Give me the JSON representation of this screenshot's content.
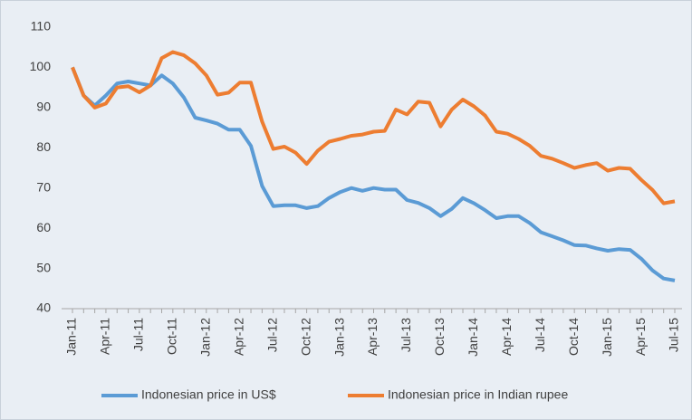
{
  "chart_data": {
    "type": "line",
    "categories": [
      "Jan-11",
      null,
      null,
      "Apr-11",
      null,
      null,
      "Jul-11",
      null,
      null,
      "Oct-11",
      null,
      null,
      "Jan-12",
      null,
      null,
      "Apr-12",
      null,
      null,
      "Jul-12",
      null,
      null,
      "Oct-12",
      null,
      null,
      "Jan-13",
      null,
      null,
      "Apr-13",
      null,
      null,
      "Jul-13",
      null,
      null,
      "Oct-13",
      null,
      null,
      "Jan-14",
      null,
      null,
      "Apr-14",
      null,
      null,
      "Jul-14",
      null,
      null,
      "Oct-14",
      null,
      null,
      "Jan-15",
      null,
      null,
      "Apr-15",
      null,
      null,
      "Jul-15"
    ],
    "series": [
      {
        "name": "Indonesian price in US$",
        "color": "#5b9bd5",
        "values": [
          100,
          93,
          90.5,
          93,
          96,
          96.5,
          96,
          95.5,
          98,
          96,
          92.5,
          87.5,
          86.8,
          86,
          84.5,
          84.5,
          80.5,
          70.5,
          65.5,
          65.7,
          65.7,
          65,
          65.5,
          67.5,
          69,
          70,
          69.3,
          70,
          69.6,
          69.6,
          67,
          66.3,
          65,
          63,
          64.8,
          67.5,
          66.2,
          64.5,
          62.5,
          63,
          63,
          61.3,
          59,
          58,
          57,
          55.8,
          55.7,
          55,
          54.4,
          54.8,
          54.6,
          52.4,
          49.5,
          47.5,
          47
        ]
      },
      {
        "name": "Indonesian price in Indian rupee",
        "color": "#ed7d31",
        "values": [
          100,
          93,
          90,
          91,
          95,
          95.3,
          93.8,
          95.5,
          102.3,
          103.8,
          103,
          101,
          98,
          93.2,
          93.7,
          96.2,
          96.2,
          86.5,
          79.7,
          80.3,
          78.8,
          76,
          79.3,
          81.5,
          82.2,
          83,
          83.3,
          84,
          84.2,
          89.5,
          88.3,
          91.5,
          91.2,
          85.3,
          89.5,
          92,
          90.3,
          88,
          84,
          83.5,
          82.2,
          80.5,
          78,
          77.3,
          76.2,
          75,
          75.7,
          76.2,
          74.3,
          75,
          74.8,
          72,
          69.5,
          66.2,
          66.7
        ]
      }
    ],
    "ylim": [
      40,
      110
    ],
    "yticks": [
      40,
      50,
      60,
      70,
      80,
      90,
      100,
      110
    ],
    "grid": false,
    "legend": "bottom"
  }
}
